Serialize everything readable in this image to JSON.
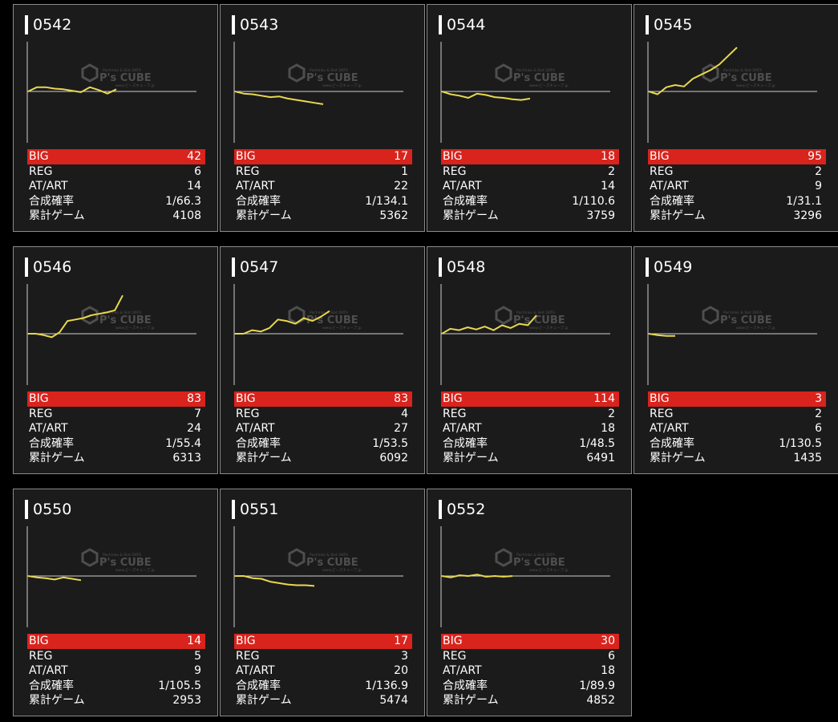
{
  "labels": {
    "big": "BIG",
    "reg": "REG",
    "at": "AT/ART",
    "prob": "合成確率",
    "games": "累計ゲーム"
  },
  "watermark": {
    "brand": "P's CUBE",
    "top": "Pachinko & Slot DATA",
    "bottom": "www.ピーズキューブ.jp"
  },
  "colors": {
    "line": "#e8d84f",
    "big_bg": "#d9231d",
    "card_bg": "#1b1b1b",
    "border": "#8a8a8a"
  },
  "cards": [
    {
      "id": "0542",
      "big": "42",
      "reg": "6",
      "at": "14",
      "prob": "1/66.3",
      "games": "4108",
      "graph": [
        0,
        6,
        6,
        4,
        3,
        1,
        -1,
        6,
        2,
        -3,
        3
      ]
    },
    {
      "id": "0543",
      "big": "17",
      "reg": "1",
      "at": "22",
      "prob": "1/134.1",
      "games": "5362",
      "graph": [
        0,
        -3,
        -4,
        -6,
        -8,
        -7,
        -10,
        -12,
        -14,
        -16,
        -18
      ]
    },
    {
      "id": "0544",
      "big": "18",
      "reg": "2",
      "at": "14",
      "prob": "1/110.6",
      "games": "3759",
      "graph": [
        0,
        -4,
        -6,
        -9,
        -3,
        -5,
        -8,
        -9,
        -11,
        -12,
        -10
      ]
    },
    {
      "id": "0545",
      "big": "95",
      "reg": "2",
      "at": "9",
      "prob": "1/31.1",
      "games": "3296",
      "graph": [
        0,
        -4,
        6,
        9,
        7,
        18,
        24,
        30,
        38,
        50,
        62
      ]
    },
    {
      "id": "0546",
      "big": "83",
      "reg": "7",
      "at": "24",
      "prob": "1/55.4",
      "games": "6313",
      "graph": [
        0,
        0,
        -2,
        -5,
        2,
        18,
        20,
        22,
        26,
        28,
        30,
        33,
        54
      ]
    },
    {
      "id": "0547",
      "big": "83",
      "reg": "4",
      "at": "27",
      "prob": "1/53.5",
      "games": "6092",
      "graph": [
        0,
        0,
        5,
        3,
        8,
        20,
        18,
        14,
        22,
        18,
        24,
        32
      ]
    },
    {
      "id": "0548",
      "big": "114",
      "reg": "2",
      "at": "18",
      "prob": "1/48.5",
      "games": "6491",
      "graph": [
        0,
        7,
        5,
        9,
        6,
        10,
        5,
        12,
        8,
        14,
        12,
        26
      ]
    },
    {
      "id": "0549",
      "big": "3",
      "reg": "2",
      "at": "6",
      "prob": "1/130.5",
      "games": "1435",
      "graph": [
        0,
        -2,
        -3,
        -3
      ]
    },
    {
      "id": "0550",
      "big": "14",
      "reg": "5",
      "at": "9",
      "prob": "1/105.5",
      "games": "2953",
      "graph": [
        0,
        -2,
        -3,
        -5,
        -2,
        -4,
        -6
      ]
    },
    {
      "id": "0551",
      "big": "17",
      "reg": "3",
      "at": "20",
      "prob": "1/136.9",
      "games": "5474",
      "graph": [
        0,
        0,
        -3,
        -4,
        -8,
        -10,
        -12,
        -13,
        -13,
        -14
      ]
    },
    {
      "id": "0552",
      "big": "30",
      "reg": "6",
      "at": "18",
      "prob": "1/89.9",
      "games": "4852",
      "graph": [
        0,
        -2,
        1,
        0,
        2,
        -1,
        0,
        -1,
        0
      ]
    }
  ]
}
